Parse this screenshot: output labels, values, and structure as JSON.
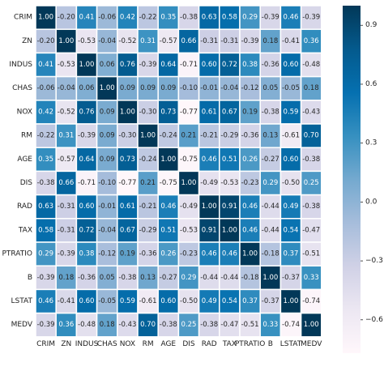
{
  "chart_data": {
    "type": "heatmap",
    "title": "",
    "xlabel": "",
    "ylabel": "",
    "labels": [
      "CRIM",
      "ZN",
      "INDUS",
      "CHAS",
      "NOX",
      "RM",
      "AGE",
      "DIS",
      "RAD",
      "TAX",
      "PTRATIO",
      "B",
      "LSTAT",
      "MEDV"
    ],
    "matrix": [
      [
        "1.00",
        "-0.20",
        "0.41",
        "-0.06",
        "0.42",
        "-0.22",
        "0.35",
        "-0.38",
        "0.63",
        "0.58",
        "0.29",
        "-0.39",
        "0.46",
        "-0.39"
      ],
      [
        "-0.20",
        "1.00",
        "-0.53",
        "-0.04",
        "-0.52",
        "0.31",
        "-0.57",
        "0.66",
        "-0.31",
        "-0.31",
        "-0.39",
        "0.18",
        "-0.41",
        "0.36"
      ],
      [
        "0.41",
        "-0.53",
        "1.00",
        "0.06",
        "0.76",
        "-0.39",
        "0.64",
        "-0.71",
        "0.60",
        "0.72",
        "0.38",
        "-0.36",
        "0.60",
        "-0.48"
      ],
      [
        "-0.06",
        "-0.04",
        "0.06",
        "1.00",
        "0.09",
        "0.09",
        "0.09",
        "-0.10",
        "-0.01",
        "-0.04",
        "-0.12",
        "0.05",
        "-0.05",
        "0.18"
      ],
      [
        "0.42",
        "-0.52",
        "0.76",
        "0.09",
        "1.00",
        "-0.30",
        "0.73",
        "-0.77",
        "0.61",
        "0.67",
        "0.19",
        "-0.38",
        "0.59",
        "-0.43"
      ],
      [
        "-0.22",
        "0.31",
        "-0.39",
        "0.09",
        "-0.30",
        "1.00",
        "-0.24",
        "0.21",
        "-0.21",
        "-0.29",
        "-0.36",
        "0.13",
        "-0.61",
        "0.70"
      ],
      [
        "0.35",
        "-0.57",
        "0.64",
        "0.09",
        "0.73",
        "-0.24",
        "1.00",
        "-0.75",
        "0.46",
        "0.51",
        "0.26",
        "-0.27",
        "0.60",
        "-0.38"
      ],
      [
        "-0.38",
        "0.66",
        "-0.71",
        "-0.10",
        "-0.77",
        "0.21",
        "-0.75",
        "1.00",
        "-0.49",
        "-0.53",
        "-0.23",
        "0.29",
        "-0.50",
        "0.25"
      ],
      [
        "0.63",
        "-0.31",
        "0.60",
        "-0.01",
        "0.61",
        "-0.21",
        "0.46",
        "-0.49",
        "1.00",
        "0.91",
        "0.46",
        "-0.44",
        "0.49",
        "-0.38"
      ],
      [
        "0.58",
        "-0.31",
        "0.72",
        "-0.04",
        "0.67",
        "-0.29",
        "0.51",
        "-0.53",
        "0.91",
        "1.00",
        "0.46",
        "-0.44",
        "0.54",
        "-0.47"
      ],
      [
        "0.29",
        "-0.39",
        "0.38",
        "-0.12",
        "0.19",
        "-0.36",
        "0.26",
        "-0.23",
        "0.46",
        "0.46",
        "1.00",
        "-0.18",
        "0.37",
        "-0.51"
      ],
      [
        "-0.39",
        "0.18",
        "-0.36",
        "0.05",
        "-0.38",
        "0.13",
        "-0.27",
        "0.29",
        "-0.44",
        "-0.44",
        "-0.18",
        "1.00",
        "-0.37",
        "0.33"
      ],
      [
        "0.46",
        "-0.41",
        "0.60",
        "-0.05",
        "0.59",
        "-0.61",
        "0.60",
        "-0.50",
        "0.49",
        "0.54",
        "0.37",
        "-0.37",
        "1.00",
        "-0.74"
      ],
      [
        "-0.39",
        "0.36",
        "-0.48",
        "0.18",
        "-0.43",
        "0.70",
        "-0.38",
        "0.25",
        "-0.38",
        "-0.47",
        "-0.51",
        "0.33",
        "-0.74",
        "1.00"
      ]
    ],
    "colorbar": {
      "colormap": "PuBu",
      "vmin": -0.77,
      "vmax": 1.0,
      "ticks": [
        "0.9",
        "0.6",
        "0.3",
        "0.0",
        "−0.3",
        "−0.6"
      ]
    },
    "colors": {
      "low": "#fff7fb",
      "high": "#023858",
      "grid_line": "#ffffff"
    }
  }
}
